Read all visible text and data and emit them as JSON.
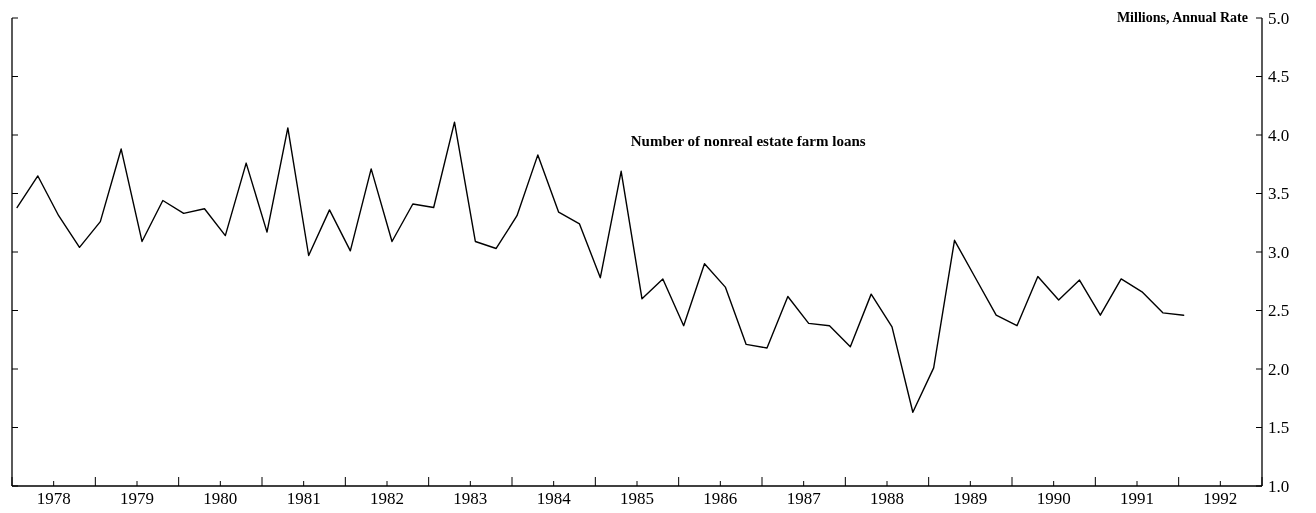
{
  "chart_data": {
    "type": "line",
    "ylabel": "Millions, Annual Rate",
    "x": [
      1978.06,
      1978.31,
      1978.56,
      1978.81,
      1979.06,
      1979.31,
      1979.56,
      1979.81,
      1980.06,
      1980.31,
      1980.56,
      1980.81,
      1981.06,
      1981.31,
      1981.56,
      1981.81,
      1982.06,
      1982.31,
      1982.56,
      1982.81,
      1983.06,
      1983.31,
      1983.56,
      1983.81,
      1984.06,
      1984.31,
      1984.56,
      1984.81,
      1985.06,
      1985.31,
      1985.56,
      1985.81,
      1986.06,
      1986.31,
      1986.56,
      1986.81,
      1987.06,
      1987.31,
      1987.56,
      1987.81,
      1988.06,
      1988.31,
      1988.56,
      1988.81,
      1989.06,
      1989.31,
      1989.56,
      1989.81,
      1990.06,
      1990.31,
      1990.56,
      1990.81,
      1991.06,
      1991.31,
      1991.56,
      1991.81,
      1992.06
    ],
    "series": [
      {
        "name": "Number of nonreal estate farm loans",
        "color": "#000000",
        "values": [
          3.38,
          3.65,
          3.31,
          3.04,
          3.26,
          3.88,
          3.09,
          3.44,
          3.33,
          3.37,
          3.14,
          3.76,
          3.17,
          4.06,
          2.97,
          3.36,
          3.01,
          3.71,
          3.09,
          3.41,
          3.38,
          4.11,
          3.09,
          3.03,
          3.31,
          3.83,
          3.34,
          3.24,
          2.78,
          3.69,
          2.6,
          2.77,
          2.37,
          2.9,
          2.7,
          2.21,
          2.18,
          2.62,
          2.39,
          2.37,
          2.19,
          2.64,
          2.36,
          1.63,
          2.01,
          3.1,
          2.78,
          2.46,
          2.37,
          2.79,
          2.59,
          2.76,
          2.46,
          2.77,
          2.66,
          2.48,
          2.46
        ]
      }
    ],
    "xlim": [
      1978,
      1993
    ],
    "xticks": [
      {
        "value": 1978,
        "label": null
      },
      {
        "value": 1978.5,
        "label": "1978"
      },
      {
        "value": 1979,
        "label": null
      },
      {
        "value": 1979.5,
        "label": "1979"
      },
      {
        "value": 1980,
        "label": null
      },
      {
        "value": 1980.5,
        "label": "1980"
      },
      {
        "value": 1981,
        "label": null
      },
      {
        "value": 1981.5,
        "label": "1981"
      },
      {
        "value": 1982,
        "label": null
      },
      {
        "value": 1982.5,
        "label": "1982"
      },
      {
        "value": 1983,
        "label": null
      },
      {
        "value": 1983.5,
        "label": "1983"
      },
      {
        "value": 1984,
        "label": null
      },
      {
        "value": 1984.5,
        "label": "1984"
      },
      {
        "value": 1985,
        "label": null
      },
      {
        "value": 1985.5,
        "label": "1985"
      },
      {
        "value": 1986,
        "label": null
      },
      {
        "value": 1986.5,
        "label": "1986"
      },
      {
        "value": 1987,
        "label": null
      },
      {
        "value": 1987.5,
        "label": "1987"
      },
      {
        "value": 1988,
        "label": null
      },
      {
        "value": 1988.5,
        "label": "1988"
      },
      {
        "value": 1989,
        "label": null
      },
      {
        "value": 1989.5,
        "label": "1989"
      },
      {
        "value": 1990,
        "label": null
      },
      {
        "value": 1990.5,
        "label": "1990"
      },
      {
        "value": 1991,
        "label": null
      },
      {
        "value": 1991.5,
        "label": "1991"
      },
      {
        "value": 1992,
        "label": null
      },
      {
        "value": 1992.5,
        "label": "1992"
      },
      {
        "value": 1993,
        "label": null
      }
    ],
    "ylim": [
      1.0,
      5.0
    ],
    "yticks": [
      {
        "value": 1.0,
        "label": "1.0"
      },
      {
        "value": 1.5,
        "label": "1.5"
      },
      {
        "value": 2.0,
        "label": "2.0"
      },
      {
        "value": 2.5,
        "label": "2.5"
      },
      {
        "value": 3.0,
        "label": "3.0"
      },
      {
        "value": 3.5,
        "label": "3.5"
      },
      {
        "value": 4.0,
        "label": "4.0"
      },
      {
        "value": 4.5,
        "label": "4.5"
      },
      {
        "value": 5.0,
        "label": "5.0"
      }
    ],
    "grid": false,
    "legend": false,
    "marker": "none",
    "line_style": "solid"
  }
}
